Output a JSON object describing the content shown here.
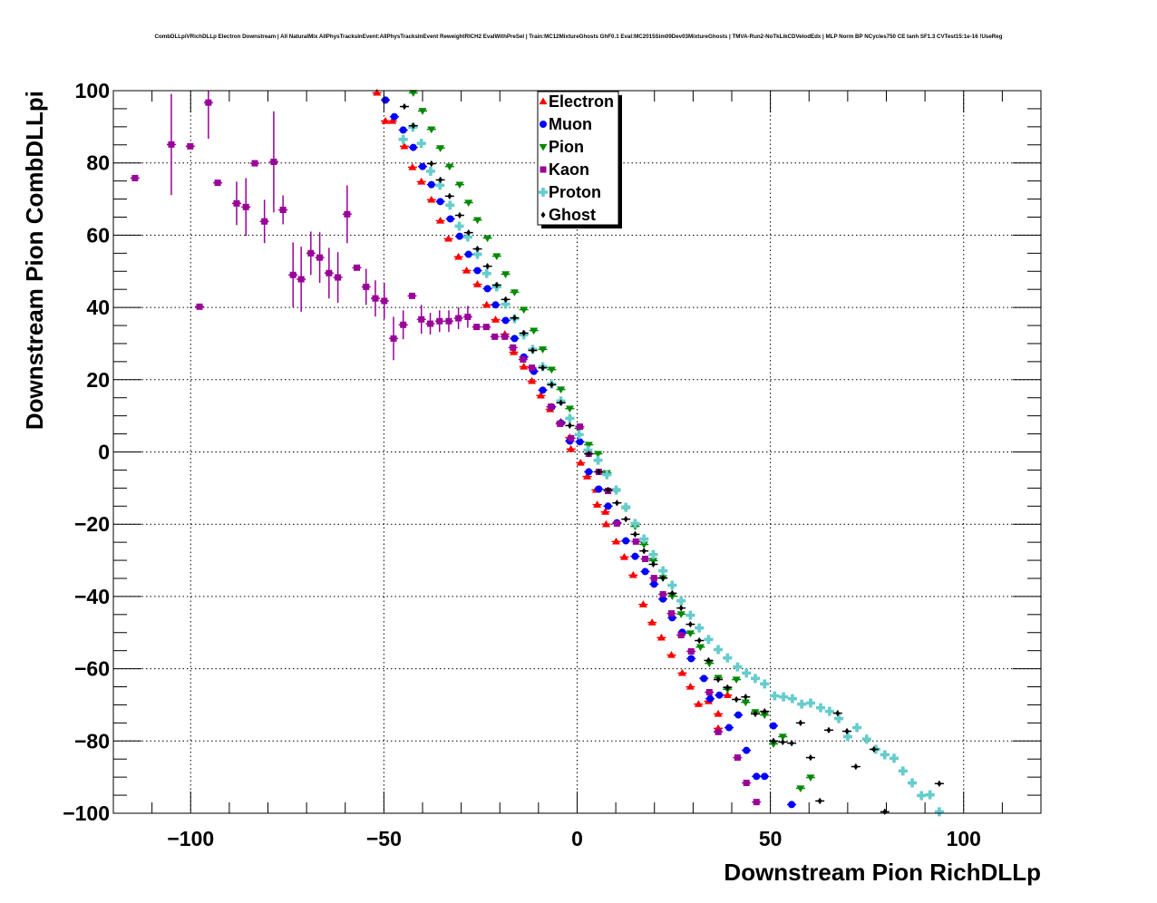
{
  "chart_data": {
    "type": "scatter",
    "title": "CombDLLpiVRichDLLp Electron Downstream | All NaturalMix AllPhysTracksInEvent:AllPhysTracksInEvent ReweightRICH2 EvalWithPreSel | Train:MC12MixtureGhosts GhF0.1 Eval:MC2015Sim09Dev03MixtureGhosts | TMVA-Run2-NoTkLikCDVelodEdx | MLP Norm BP NCycles750 CE tanh SF1.3 CVTest15:1e-16 !UseReg",
    "xlabel": "Downstream Pion RichDLLp",
    "ylabel": "Downstream Pion CombDLLpi",
    "xlim": [
      -120,
      120
    ],
    "ylim": [
      -100,
      100
    ],
    "xticks": [
      -100,
      -50,
      0,
      50,
      100
    ],
    "xtick_labels": [
      "−100",
      "−50",
      "0",
      "50",
      "100"
    ],
    "yticks": [
      100,
      80,
      60,
      40,
      20,
      0,
      -20,
      -40,
      -60,
      -80,
      -100
    ],
    "ytick_labels": [
      "100",
      "80",
      "60",
      "40",
      "20",
      "0",
      "−20",
      "−40",
      "−60",
      "−80",
      "−100"
    ],
    "grid": true,
    "legend_position": "top-center",
    "series": [
      {
        "name": "Electron",
        "color": "#ff0000",
        "marker": "triangle-up",
        "x": [
          -51.8,
          -49.6,
          -47.8,
          -44.7,
          -42.6,
          -40.3,
          -37.7,
          -35.4,
          -33.3,
          -30.7,
          -28.6,
          -25.8,
          -23.4,
          -21.1,
          -18.7,
          -16.4,
          -13.8,
          -11.7,
          -9.4,
          -7,
          -4.2,
          -1.9,
          -1.6,
          0.9,
          2.6,
          4.9,
          5.2,
          7.3,
          7.5,
          10.1,
          12.2,
          14.5,
          17.1,
          19.4,
          21.8,
          24.4,
          27.2,
          29.3,
          31.4,
          34,
          36.5,
          36.5,
          38.9
        ],
        "y": [
          99.4,
          91.6,
          91.6,
          84.6,
          78.8,
          74.8,
          69.8,
          64,
          59,
          54,
          50.2,
          46.4,
          40.7,
          36.6,
          32.6,
          27.6,
          23.6,
          19.6,
          15.6,
          11.8,
          8.3,
          4,
          0.8,
          -3,
          -6.8,
          -10.5,
          -14.6,
          -16.6,
          -20,
          -24.8,
          -29.1,
          -34.1,
          -42.2,
          -47.2,
          -51.4,
          -56.2,
          -61.2,
          -65,
          -69.8,
          -69,
          -72.5,
          -76.5,
          -67.3
        ]
      },
      {
        "name": "Muon",
        "color": "#0000ff",
        "marker": "circle",
        "x": [
          -49.6,
          -47.3,
          -45,
          -42.4,
          -40,
          -37.7,
          -35.4,
          -32.8,
          -30.4,
          -28.1,
          -25.8,
          -23.2,
          -21.1,
          -18.5,
          -16.2,
          -13.8,
          -11.2,
          -8.9,
          -6.6,
          -4.2,
          -1.9,
          0.7,
          3,
          5.6,
          8,
          10.3,
          12.6,
          15,
          17.6,
          19.9,
          22.2,
          24.6,
          27.2,
          29.5,
          32.8,
          34.4,
          36.8,
          39.3,
          41.7,
          43.8,
          46.4,
          48.5,
          50.8,
          55.5
        ],
        "y": [
          97.4,
          92.8,
          89.1,
          84.3,
          79,
          74,
          69.3,
          64.5,
          59.7,
          54.7,
          50.2,
          45.2,
          40.7,
          36.4,
          31.4,
          26.3,
          22.3,
          17.1,
          12.5,
          8,
          3,
          2.8,
          -5.5,
          -10.3,
          -15,
          -19.6,
          -24.6,
          -28.9,
          -33.1,
          -36.6,
          -40.7,
          -45.9,
          -49.9,
          -57.2,
          -62.7,
          -68.3,
          -67.3,
          -76.3,
          -72.8,
          -82.6,
          -89.8,
          -89.8,
          -75.8,
          -97.6
        ]
      },
      {
        "name": "Pion",
        "color": "#008800",
        "marker": "triangle-down",
        "x": [
          -42.4,
          -40,
          -37.7,
          -35.4,
          -33,
          -30.4,
          -28.1,
          -25.8,
          -23.2,
          -20.8,
          -18.5,
          -16.2,
          -13.8,
          -11.2,
          -8.9,
          -6.6,
          -4.2,
          -1.9,
          0.5,
          3,
          5.4,
          7.7,
          10.1,
          12.6,
          15,
          17.3,
          19.7,
          22.2,
          24.6,
          26.9,
          29.3,
          31.9,
          34.2,
          36.5,
          38.9,
          41.2,
          43.6,
          46.1,
          48.5,
          50.8,
          53.2,
          57.8,
          60.4
        ],
        "y": [
          99.4,
          94.4,
          89.3,
          84.1,
          79,
          74,
          69,
          64.2,
          59.2,
          54.2,
          49.2,
          44.2,
          39.4,
          33.6,
          28.4,
          22.8,
          17.3,
          12,
          6.5,
          2,
          -0.5,
          -5.8,
          -10.8,
          -15.6,
          -20.6,
          -25.6,
          -30.1,
          -34.9,
          -39.9,
          -44.9,
          -50.2,
          -54,
          -58.5,
          -62.5,
          -65.7,
          -63,
          -69.3,
          -72,
          -72.8,
          -80.8,
          -78.8,
          -93.1,
          -90.1
        ]
      },
      {
        "name": "Kaon",
        "color": "#990099",
        "marker": "square",
        "x": [
          -114.4,
          -105,
          -100.1,
          -95.4,
          -97.7,
          -93,
          -88.1,
          -85.7,
          -83.4,
          -80.9,
          -78.5,
          -76.1,
          -73.5,
          -71.4,
          -68.9,
          -66.6,
          -64.2,
          -61.9,
          -59.5,
          -57,
          -54.6,
          -52.2,
          -49.9,
          -47.5,
          -45,
          -42.7,
          -40.3,
          -38,
          -35.6,
          -33.2,
          -30.7,
          -28.3,
          -26,
          -23.5,
          -21.3,
          -18.7,
          -16.6,
          -14,
          -11.7,
          -6.8,
          -4.4,
          -1.6,
          0.7,
          3,
          5.6,
          8,
          10.3,
          15.2,
          17.6,
          19.9,
          22.2,
          24.4,
          26.9,
          29.5,
          34.2,
          36.5,
          41.5,
          43.8,
          46.4
        ],
        "y": [
          75.8,
          85.1,
          84.6,
          96.7,
          40.2,
          74.5,
          68.8,
          67.8,
          79.9,
          63.8,
          80.3,
          67,
          49,
          47.8,
          55,
          53.8,
          49.5,
          48.3,
          65.8,
          51,
          45.7,
          42.5,
          41.8,
          31.4,
          35.2,
          43.2,
          36.7,
          35.5,
          36.2,
          36.2,
          37,
          37.4,
          34.6,
          34.6,
          31.9,
          31.9,
          28.9,
          25.6,
          23.3,
          12.5,
          7.8,
          3.8,
          7,
          -0.5,
          -5.5,
          -10.8,
          -19.8,
          -24.8,
          -29.6,
          -34.9,
          -39.4,
          -44.7,
          -50.7,
          -55.2,
          -66.5,
          -77.5,
          -84.6,
          -91.6,
          -96.9
        ],
        "yerr": [
          0,
          14,
          0,
          10,
          0,
          0,
          6,
          8,
          0,
          6,
          14,
          4,
          9,
          9,
          6,
          7,
          7,
          7,
          8,
          0,
          5,
          5,
          5,
          6,
          4,
          0,
          4,
          3,
          3,
          3,
          3,
          3,
          0,
          0,
          0,
          0,
          0,
          0,
          0,
          0,
          0,
          0,
          0,
          0,
          0,
          0,
          0,
          0,
          0,
          0,
          0,
          0,
          0,
          0,
          0,
          0,
          0,
          0,
          0
        ]
      },
      {
        "name": "Proton",
        "color": "#66cccc",
        "marker": "cross",
        "x": [
          -45,
          -42.5,
          -40.3,
          -37.9,
          -35.5,
          -32.9,
          -30.5,
          -28.3,
          -25.8,
          -23.4,
          -20.8,
          -18.5,
          -16.2,
          -13.8,
          -11.5,
          -8.9,
          -6.6,
          -4.2,
          -1.9,
          0.5,
          2.8,
          5.4,
          7.7,
          10.1,
          12.6,
          15,
          17.3,
          19.7,
          22.2,
          24.6,
          26.9,
          29.3,
          31.6,
          34,
          36.5,
          38.9,
          41.5,
          43.8,
          46.1,
          48.5,
          51.1,
          53.4,
          55.7,
          58.1,
          60.4,
          63,
          65.3,
          67.7,
          70,
          72.4,
          74.9,
          77.3,
          79.6,
          82,
          84.3,
          86.7,
          89.1,
          91.3,
          93.7
        ],
        "y": [
          86.5,
          89.9,
          85.4,
          77.7,
          73.8,
          68.3,
          62.5,
          59.5,
          54.7,
          49.4,
          45.7,
          40.9,
          36.9,
          32.4,
          28.4,
          23.6,
          18.8,
          14.1,
          9.3,
          4.8,
          0.5,
          -2.3,
          -6.3,
          -10.5,
          -15.3,
          -19.8,
          -24.1,
          -28.4,
          -32.9,
          -36.9,
          -41.2,
          -45.2,
          -48.7,
          -51.9,
          -54.7,
          -57,
          -59.5,
          -61.2,
          -62.7,
          -64.2,
          -67.5,
          -67.8,
          -68.3,
          -69.8,
          -69.5,
          -70.8,
          -71.8,
          -73.8,
          -78.8,
          -76.3,
          -79.5,
          -82.3,
          -83.8,
          -84.8,
          -88.3,
          -91.6,
          -95.1,
          -94.9,
          -99.6
        ]
      },
      {
        "name": "Ghost",
        "color": "#000000",
        "marker": "star",
        "x": [
          -44.7,
          -42.4,
          -37.7,
          -35.4,
          -33,
          -30.4,
          -28.1,
          -25.8,
          -23.2,
          -20.8,
          -18.5,
          -16.2,
          -13.8,
          -11.5,
          -8.9,
          -6.6,
          -4.2,
          -1.9,
          3,
          5.6,
          8,
          10.3,
          12.6,
          15,
          17.3,
          19.7,
          22.2,
          24.6,
          26.9,
          29.3,
          31.6,
          34,
          36.5,
          38.9,
          41.2,
          43.6,
          46.1,
          48.5,
          50.8,
          53.2,
          55.5,
          57.8,
          60.4,
          62.8,
          65.1,
          67.4,
          69.8,
          72.1,
          76.8,
          79.6,
          93.7
        ],
        "y": [
          95.6,
          90.3,
          79.8,
          75.3,
          70.8,
          65.5,
          60.7,
          56.2,
          51.4,
          46.2,
          42.2,
          37.1,
          32.9,
          28.1,
          23.3,
          18.6,
          13.6,
          7.3,
          -0.5,
          -5.5,
          -10.5,
          -14.1,
          -18.6,
          -22.8,
          -27.4,
          -31.1,
          -34.9,
          -39.1,
          -43.2,
          -47.7,
          -52.2,
          -57.7,
          -63,
          -65.2,
          -68.5,
          -67.8,
          -72.5,
          -71.8,
          -80,
          -80.3,
          -80.6,
          -75,
          -84.6,
          -96.6,
          -77,
          -72.3,
          -77.3,
          -87.1,
          -82.3,
          -99.6,
          -91.8
        ]
      }
    ]
  }
}
